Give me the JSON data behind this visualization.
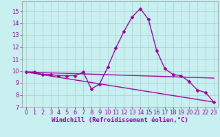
{
  "xlabel": "Windchill (Refroidissement éolien,°C)",
  "background_color": "#c8f0f0",
  "line_color": "#990099",
  "grid_color": "#aacccc",
  "xlim_min": -0.5,
  "xlim_max": 23.5,
  "ylim_min": 7,
  "ylim_max": 15.8,
  "yticks": [
    7,
    8,
    9,
    10,
    11,
    12,
    13,
    14,
    15
  ],
  "xticks": [
    0,
    1,
    2,
    3,
    4,
    5,
    6,
    7,
    8,
    9,
    10,
    11,
    12,
    13,
    14,
    15,
    16,
    17,
    18,
    19,
    20,
    21,
    22,
    23
  ],
  "curve1_x": [
    0,
    1,
    2,
    3,
    4,
    5,
    6,
    7,
    8,
    9,
    10,
    11,
    12,
    13,
    14,
    15,
    16,
    17,
    18,
    19,
    20,
    21,
    22,
    23
  ],
  "curve1_y": [
    9.9,
    9.9,
    9.7,
    9.7,
    9.6,
    9.6,
    9.6,
    9.9,
    8.5,
    8.9,
    10.3,
    11.9,
    13.3,
    14.5,
    15.2,
    14.3,
    11.7,
    10.2,
    9.7,
    9.6,
    9.1,
    8.4,
    8.2,
    7.4
  ],
  "curve2_x": [
    0,
    23
  ],
  "curve2_y": [
    9.9,
    9.4
  ],
  "curve3_x": [
    0,
    23
  ],
  "curve3_y": [
    9.9,
    7.4
  ],
  "marker_size": 2.0,
  "line_width": 1.0,
  "font_size": 6,
  "tick_label_color": "#990099"
}
